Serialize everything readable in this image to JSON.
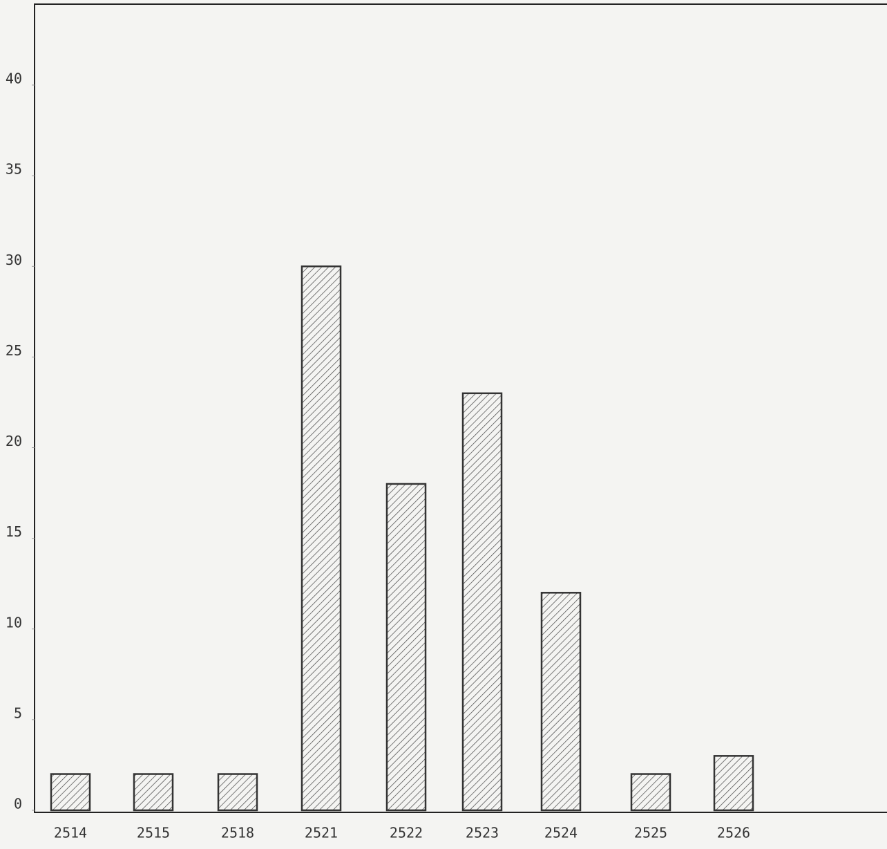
{
  "chart_data": {
    "type": "bar",
    "categories": [
      "2514",
      "2515",
      "2518",
      "2521",
      "2522",
      "2523",
      "2524",
      "2525",
      "2526"
    ],
    "values": [
      2,
      2,
      2,
      30,
      18,
      23,
      12,
      2,
      3
    ],
    "color": "#333333",
    "ylim": [
      0,
      44.5
    ],
    "yticks": [
      0,
      5,
      10,
      15,
      20,
      25,
      30,
      35,
      40
    ],
    "grid": false
  }
}
